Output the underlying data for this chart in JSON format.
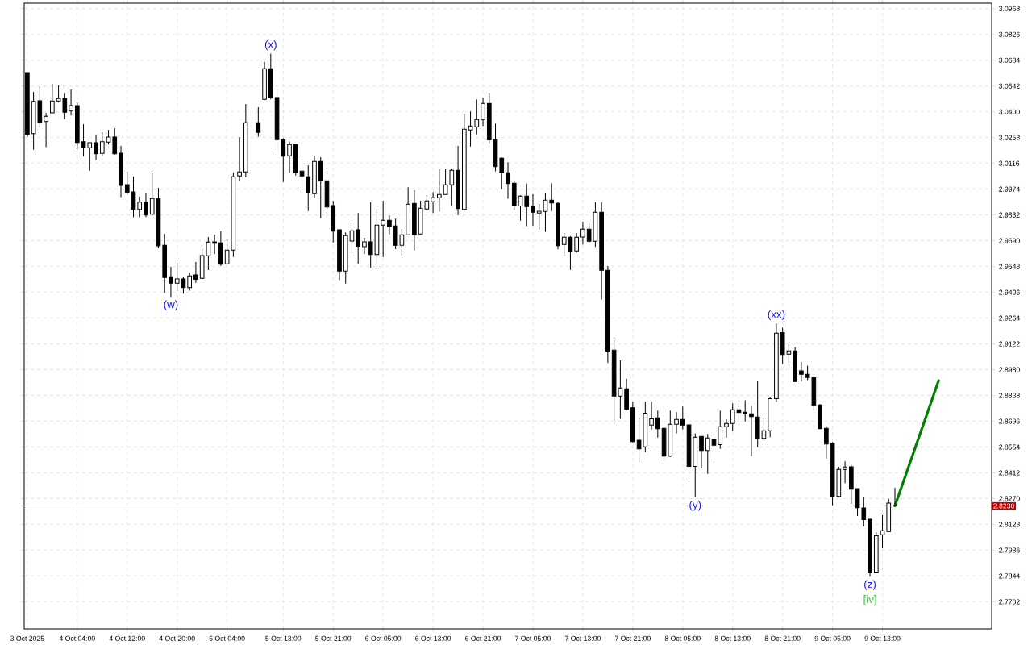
{
  "chart_data": {
    "type": "candlestick",
    "series": [
      {
        "color": "#000000",
        "x": [
          "2025-10-03T20:00",
          "2025-10-03T21:00",
          "2025-10-03T22:00",
          "2025-10-03T23:00",
          "2025-10-04T00:00",
          "2025-10-04T01:00",
          "2025-10-04T02:00",
          "2025-10-04T03:00",
          "2025-10-04T04:00",
          "2025-10-04T05:00",
          "2025-10-04T06:00",
          "2025-10-04T07:00",
          "2025-10-04T08:00",
          "2025-10-04T09:00",
          "2025-10-04T10:00",
          "2025-10-04T11:00",
          "2025-10-04T12:00",
          "2025-10-04T13:00",
          "2025-10-04T14:00",
          "2025-10-04T15:00",
          "2025-10-04T16:00",
          "2025-10-04T17:00",
          "2025-10-04T18:00",
          "2025-10-04T19:00",
          "2025-10-04T20:00",
          "2025-10-04T21:00",
          "2025-10-04T22:00",
          "2025-10-04T23:00",
          "2025-10-05T00:00",
          "2025-10-05T01:00",
          "2025-10-05T02:00",
          "2025-10-05T03:00",
          "2025-10-05T04:00",
          "2025-10-05T05:00",
          "2025-10-05T06:00",
          "2025-10-05T07:00",
          "2025-10-05T09:00",
          "2025-10-05T10:00",
          "2025-10-05T11:00",
          "2025-10-05T12:00",
          "2025-10-05T13:00",
          "2025-10-05T14:00",
          "2025-10-05T15:00",
          "2025-10-05T16:00",
          "2025-10-05T17:00",
          "2025-10-05T18:00",
          "2025-10-05T19:00",
          "2025-10-05T20:00",
          "2025-10-05T21:00",
          "2025-10-05T22:00",
          "2025-10-05T23:00",
          "2025-10-06T00:00",
          "2025-10-06T01:00",
          "2025-10-06T02:00",
          "2025-10-06T03:00",
          "2025-10-06T04:00",
          "2025-10-06T05:00",
          "2025-10-06T06:00",
          "2025-10-06T07:00",
          "2025-10-06T08:00",
          "2025-10-06T09:00",
          "2025-10-06T10:00",
          "2025-10-06T11:00",
          "2025-10-06T12:00",
          "2025-10-06T13:00",
          "2025-10-06T14:00",
          "2025-10-06T15:00",
          "2025-10-06T16:00",
          "2025-10-06T17:00",
          "2025-10-06T18:00",
          "2025-10-06T19:00",
          "2025-10-06T20:00",
          "2025-10-06T21:00",
          "2025-10-06T22:00",
          "2025-10-06T23:00",
          "2025-10-07T00:00",
          "2025-10-07T01:00",
          "2025-10-07T02:00",
          "2025-10-07T03:00",
          "2025-10-07T04:00",
          "2025-10-07T05:00",
          "2025-10-07T06:00",
          "2025-10-07T07:00",
          "2025-10-07T08:00",
          "2025-10-07T09:00",
          "2025-10-07T10:00",
          "2025-10-07T11:00",
          "2025-10-07T12:00",
          "2025-10-07T13:00",
          "2025-10-07T14:00",
          "2025-10-07T15:00",
          "2025-10-07T16:00",
          "2025-10-07T17:00",
          "2025-10-07T18:00",
          "2025-10-07T19:00",
          "2025-10-07T20:00",
          "2025-10-07T21:00",
          "2025-10-07T22:00",
          "2025-10-07T23:00",
          "2025-10-08T00:00",
          "2025-10-08T01:00",
          "2025-10-08T02:00",
          "2025-10-08T03:00",
          "2025-10-08T04:00",
          "2025-10-08T05:00",
          "2025-10-08T06:00",
          "2025-10-08T07:00",
          "2025-10-08T08:00",
          "2025-10-08T09:00",
          "2025-10-08T10:00",
          "2025-10-08T11:00",
          "2025-10-08T12:00",
          "2025-10-08T13:00",
          "2025-10-08T14:00",
          "2025-10-08T15:00",
          "2025-10-08T16:00",
          "2025-10-08T17:00",
          "2025-10-08T18:00",
          "2025-10-08T19:00",
          "2025-10-08T20:00",
          "2025-10-08T21:00",
          "2025-10-08T22:00",
          "2025-10-08T23:00",
          "2025-10-09T00:00",
          "2025-10-09T01:00",
          "2025-10-09T02:00",
          "2025-10-09T03:00",
          "2025-10-09T04:00",
          "2025-10-09T05:00",
          "2025-10-09T06:00",
          "2025-10-09T07:00",
          "2025-10-09T08:00",
          "2025-10-09T09:00",
          "2025-10-09T10:00",
          "2025-10-09T11:00",
          "2025-10-09T12:00",
          "2025-10-09T13:00",
          "2025-10-09T14:00",
          "2025-10-09T15:00"
        ],
        "ohlc": [
          [
            3.0616,
            3.0616,
            3.0262,
            3.0275
          ],
          [
            3.028,
            3.051,
            3.0191,
            3.0457
          ],
          [
            3.0461,
            3.054,
            3.0313,
            3.0342
          ],
          [
            3.0346,
            3.0394,
            3.0205,
            3.0375
          ],
          [
            3.0394,
            3.0554,
            3.0394,
            3.046
          ],
          [
            3.046,
            3.0545,
            3.0451,
            3.0473
          ],
          [
            3.0474,
            3.0504,
            3.036,
            3.0398
          ],
          [
            3.0406,
            3.0523,
            3.038,
            3.0434
          ],
          [
            3.0434,
            3.0451,
            3.0195,
            3.0231
          ],
          [
            3.0235,
            3.0332,
            3.0155,
            3.0202
          ],
          [
            3.0202,
            3.023,
            3.0076,
            3.023
          ],
          [
            3.023,
            3.0271,
            3.0134,
            3.0169
          ],
          [
            3.0171,
            3.0288,
            3.0156,
            3.0235
          ],
          [
            3.0233,
            3.0301,
            3.022,
            3.0261
          ],
          [
            3.0261,
            3.031,
            3.0165,
            3.0169
          ],
          [
            3.0172,
            3.0212,
            2.993,
            2.9995
          ],
          [
            2.9999,
            3.007,
            2.9942,
            2.9956
          ],
          [
            2.9959,
            3.0044,
            2.9819,
            2.9863
          ],
          [
            2.9863,
            2.9933,
            2.9819,
            2.9902
          ],
          [
            2.9902,
            2.995,
            2.9819,
            2.9832
          ],
          [
            2.9836,
            3.0061,
            2.9827,
            2.9922
          ],
          [
            2.9922,
            2.9981,
            2.965,
            2.9662
          ],
          [
            2.9665,
            2.9728,
            2.9403,
            2.9487
          ],
          [
            2.9492,
            2.9546,
            2.9381,
            2.9456
          ],
          [
            2.9456,
            2.9569,
            2.9415,
            2.948
          ],
          [
            2.948,
            2.9489,
            2.9399,
            2.9432
          ],
          [
            2.9432,
            2.9514,
            2.9415,
            2.9496
          ],
          [
            2.9502,
            2.9573,
            2.9459,
            2.9477
          ],
          [
            2.9483,
            2.9645,
            2.9483,
            2.9609
          ],
          [
            2.9607,
            2.9711,
            2.9529,
            2.9683
          ],
          [
            2.9684,
            2.9724,
            2.9617,
            2.9676
          ],
          [
            2.9678,
            2.9742,
            2.9552,
            2.9561
          ],
          [
            2.9563,
            2.9697,
            2.9563,
            2.9638
          ],
          [
            2.9638,
            3.0067,
            2.9601,
            3.0042
          ],
          [
            3.0047,
            3.0261,
            3.002,
            3.0069
          ],
          [
            3.0069,
            3.0443,
            3.0039,
            3.034
          ],
          [
            3.034,
            3.0425,
            3.0263,
            3.0287
          ],
          [
            3.0469,
            3.0675,
            3.0464,
            3.0637
          ],
          [
            3.0637,
            3.072,
            3.0469,
            3.0476
          ],
          [
            3.0479,
            3.0528,
            3.0174,
            3.0247
          ],
          [
            3.0247,
            3.0254,
            3.0014,
            3.0156
          ],
          [
            3.0158,
            3.0235,
            3.0063,
            3.022
          ],
          [
            3.022,
            3.022,
            3.0049,
            3.0065
          ],
          [
            3.0073,
            3.014,
            2.9968,
            3.0047
          ],
          [
            3.0042,
            3.0106,
            2.9854,
            2.9953
          ],
          [
            2.9949,
            3.0158,
            2.9925,
            3.0127
          ],
          [
            3.0127,
            3.015,
            2.9814,
            3.002
          ],
          [
            3.002,
            3.0078,
            2.981,
            2.9876
          ],
          [
            2.9884,
            2.9909,
            2.9681,
            2.9743
          ],
          [
            2.9751,
            2.9751,
            2.9474,
            2.9523
          ],
          [
            2.9523,
            2.9736,
            2.9454,
            2.9718
          ],
          [
            2.9688,
            2.9791,
            2.9619,
            2.9745
          ],
          [
            2.9751,
            2.9843,
            2.9563,
            2.9659
          ],
          [
            2.9657,
            2.9706,
            2.9617,
            2.9684
          ],
          [
            2.9684,
            2.9902,
            2.9541,
            2.9614
          ],
          [
            2.9614,
            2.9866,
            2.9533,
            2.9776
          ],
          [
            2.9776,
            2.991,
            2.96,
            2.9803
          ],
          [
            2.9803,
            2.9829,
            2.9725,
            2.977
          ],
          [
            2.9772,
            2.9811,
            2.9644,
            2.9665
          ],
          [
            2.9665,
            2.9755,
            2.961,
            2.9723
          ],
          [
            2.9723,
            2.9985,
            2.9723,
            2.9891
          ],
          [
            2.9896,
            2.9968,
            2.9637,
            2.9723
          ],
          [
            2.9727,
            2.991,
            2.9727,
            2.9869
          ],
          [
            2.9865,
            2.9941,
            2.9856,
            2.9909
          ],
          [
            2.9905,
            2.9958,
            2.9843,
            2.9927
          ],
          [
            2.9927,
            3.0084,
            2.985,
            2.9945
          ],
          [
            2.9945,
            3.0084,
            2.9945,
            2.9998
          ],
          [
            2.9998,
            3.0088,
            2.9882,
            3.0078
          ],
          [
            3.0078,
            3.0212,
            2.9832,
            2.9867
          ],
          [
            2.9863,
            3.0389,
            2.986,
            3.0304
          ],
          [
            3.03,
            3.0402,
            3.0209,
            3.0322
          ],
          [
            3.0318,
            3.0469,
            3.0276,
            3.0358
          ],
          [
            3.0358,
            3.0477,
            3.0322,
            3.0446
          ],
          [
            3.0446,
            3.0505,
            3.0227,
            3.0245
          ],
          [
            3.0247,
            3.0335,
            3.0072,
            3.0098
          ],
          [
            3.0145,
            3.0149,
            2.9974,
            3.0063
          ],
          [
            3.0065,
            3.0122,
            2.9921,
            3.0005
          ],
          [
            3.0007,
            3.002,
            2.9858,
            2.9882
          ],
          [
            2.9882,
            2.994,
            2.9801,
            2.9936
          ],
          [
            2.9936,
            3.0005,
            2.977,
            2.9878
          ],
          [
            2.9879,
            2.9946,
            2.9773,
            2.9847
          ],
          [
            2.9843,
            2.9893,
            2.9752,
            2.9853
          ],
          [
            2.9851,
            2.995,
            2.9739,
            2.9914
          ],
          [
            2.9914,
            3.0007,
            2.9854,
            2.9898
          ],
          [
            2.9896,
            2.9903,
            2.9643,
            2.9663
          ],
          [
            2.9669,
            2.9733,
            2.9605,
            2.9709
          ],
          [
            2.9709,
            2.9715,
            2.953,
            2.9632
          ],
          [
            2.9634,
            2.9733,
            2.9625,
            2.9709
          ],
          [
            2.9711,
            2.9795,
            2.9669,
            2.9754
          ],
          [
            2.9754,
            2.9785,
            2.9678,
            2.9687
          ],
          [
            2.9687,
            2.9902,
            2.9656,
            2.9847
          ],
          [
            2.9847,
            2.9902,
            2.9366,
            2.9527
          ],
          [
            2.9527,
            2.9551,
            2.9017,
            2.9082
          ],
          [
            2.9088,
            2.916,
            2.8679,
            2.8835
          ],
          [
            2.8835,
            2.9031,
            2.8709,
            2.8879
          ],
          [
            2.8875,
            2.8929,
            2.8757,
            2.8762
          ],
          [
            2.8771,
            2.8804,
            2.858,
            2.8584
          ],
          [
            2.8592,
            2.8712,
            2.8471,
            2.8544
          ],
          [
            2.8555,
            2.8804,
            2.8528,
            2.8741
          ],
          [
            2.8675,
            2.8804,
            2.8651,
            2.871
          ],
          [
            2.8715,
            2.8755,
            2.8606,
            2.8655
          ],
          [
            2.8657,
            2.8657,
            2.8478,
            2.8504
          ],
          [
            2.8504,
            2.8755,
            2.85,
            2.8679
          ],
          [
            2.8679,
            2.8746,
            2.863,
            2.8706
          ],
          [
            2.8706,
            2.8777,
            2.8651,
            2.8675
          ],
          [
            2.8676,
            2.8676,
            2.8361,
            2.8447
          ],
          [
            2.8447,
            2.863,
            2.8278,
            2.8608
          ],
          [
            2.8613,
            2.8613,
            2.8438,
            2.8535
          ],
          [
            2.8535,
            2.8626,
            2.8407,
            2.8604
          ],
          [
            2.8599,
            2.8626,
            2.8469,
            2.8564
          ],
          [
            2.8567,
            2.8755,
            2.8544,
            2.8666
          ],
          [
            2.8666,
            2.8706,
            2.8606,
            2.8684
          ],
          [
            2.8684,
            2.8795,
            2.8642,
            2.8759
          ],
          [
            2.8759,
            2.8795,
            2.8691,
            2.8744
          ],
          [
            2.8746,
            2.8812,
            2.8695,
            2.8737
          ],
          [
            2.8737,
            2.8781,
            2.8504,
            2.8722
          ],
          [
            2.8719,
            2.892,
            2.8553,
            2.8602
          ],
          [
            2.8602,
            2.8715,
            2.8586,
            2.8644
          ],
          [
            2.8644,
            2.883,
            2.8608,
            2.882
          ],
          [
            2.882,
            2.9234,
            2.8802,
            2.9181
          ],
          [
            2.9185,
            2.9212,
            2.9011,
            2.9064
          ],
          [
            2.9066,
            2.9119,
            2.9017,
            2.9083
          ],
          [
            2.9083,
            2.9105,
            2.8915,
            2.8915
          ],
          [
            2.8974,
            2.9024,
            2.8915,
            2.8955
          ],
          [
            2.8955,
            2.9003,
            2.8923,
            2.8937
          ],
          [
            2.8937,
            2.8946,
            2.8755,
            2.8784
          ],
          [
            2.8786,
            2.879,
            2.8655,
            2.8655
          ],
          [
            2.8657,
            2.8669,
            2.8491,
            2.8571
          ],
          [
            2.8574,
            2.8582,
            2.8233,
            2.8282
          ],
          [
            2.8282,
            2.8445,
            2.8278,
            2.8431
          ],
          [
            2.8431,
            2.8475,
            2.8355,
            2.8444
          ],
          [
            2.8445,
            2.8455,
            2.8242,
            2.8322
          ],
          [
            2.8325,
            2.8325,
            2.8174,
            2.822
          ],
          [
            2.8219,
            2.8281,
            2.8117,
            2.8154
          ],
          [
            2.8157,
            2.8157,
            2.7841,
            2.7861
          ],
          [
            2.7861,
            2.8086,
            2.7861,
            2.8066
          ],
          [
            2.8071,
            2.8179,
            2.7997,
            2.8093
          ],
          [
            2.8089,
            2.8268,
            2.8089,
            2.8245
          ],
          [
            2.8232,
            2.833,
            2.8228,
            2.823
          ]
        ]
      },
      {
        "type": "line",
        "color": "#008000",
        "x": [
          "2025-10-09T15:00",
          "2025-10-09T22:00"
        ],
        "values": [
          2.823,
          2.892
        ]
      }
    ],
    "xlim": [
      "2025-10-03T19:30",
      "2025-10-10T06:30"
    ],
    "ylim": [
      2.7553,
      3.0998
    ],
    "xticks": [
      {
        "value": "2025-10-03T20:00",
        "label": "3 Oct 2025"
      },
      {
        "value": "2025-10-04T04:00",
        "label": "4 Oct 04:00"
      },
      {
        "value": "2025-10-04T12:00",
        "label": "4 Oct 12:00"
      },
      {
        "value": "2025-10-04T20:00",
        "label": "4 Oct 20:00"
      },
      {
        "value": "2025-10-05T04:00",
        "label": "5 Oct 04:00"
      },
      {
        "value": "2025-10-05T13:00",
        "label": "5 Oct 13:00"
      },
      {
        "value": "2025-10-05T21:00",
        "label": "5 Oct 21:00"
      },
      {
        "value": "2025-10-06T05:00",
        "label": "6 Oct 05:00"
      },
      {
        "value": "2025-10-06T13:00",
        "label": "6 Oct 13:00"
      },
      {
        "value": "2025-10-06T21:00",
        "label": "6 Oct 21:00"
      },
      {
        "value": "2025-10-07T05:00",
        "label": "7 Oct 05:00"
      },
      {
        "value": "2025-10-07T13:00",
        "label": "7 Oct 13:00"
      },
      {
        "value": "2025-10-07T21:00",
        "label": "7 Oct 21:00"
      },
      {
        "value": "2025-10-08T05:00",
        "label": "8 Oct 05:00"
      },
      {
        "value": "2025-10-08T13:00",
        "label": "8 Oct 13:00"
      },
      {
        "value": "2025-10-08T21:00",
        "label": "8 Oct 21:00"
      },
      {
        "value": "2025-10-09T05:00",
        "label": "9 Oct 05:00"
      },
      {
        "value": "2025-10-09T13:00",
        "label": "9 Oct 13:00"
      }
    ],
    "yticks": [
      3.0968,
      3.0826,
      3.0684,
      3.0542,
      {
        "value": 3.04,
        "label": "3.0400"
      },
      3.0258,
      3.0116,
      2.9974,
      2.9832,
      {
        "value": 2.969,
        "label": "2.9690"
      },
      2.9548,
      2.9406,
      2.9264,
      2.9122,
      {
        "value": 2.898,
        "label": "2.8980"
      },
      2.8838,
      2.8696,
      2.8554,
      2.8412,
      {
        "value": 2.827,
        "label": "2.8270"
      },
      2.8128,
      2.7986,
      2.7844,
      2.7702
    ],
    "grid": true,
    "ref_lines": [
      {
        "axis": "y",
        "value": 2.823,
        "label": "2.8230",
        "color": "#c00000"
      }
    ],
    "annotations": [
      {
        "text": "(w)",
        "x": "2025-10-04T19:00",
        "y": 2.9381
      },
      {
        "text": "(x)",
        "x": "2025-10-05T11:00",
        "y": 3.072
      },
      {
        "text": "(y)",
        "x": "2025-10-08T07:00",
        "y": 2.8278
      },
      {
        "text": "(xx)",
        "x": "2025-10-08T20:00",
        "y": 2.9234
      },
      {
        "text": "(z)",
        "x": "2025-10-09T11:00",
        "y": 2.7841
      },
      {
        "text": "[iv]",
        "x": "2025-10-09T11:00",
        "y": 2.7841
      }
    ]
  }
}
